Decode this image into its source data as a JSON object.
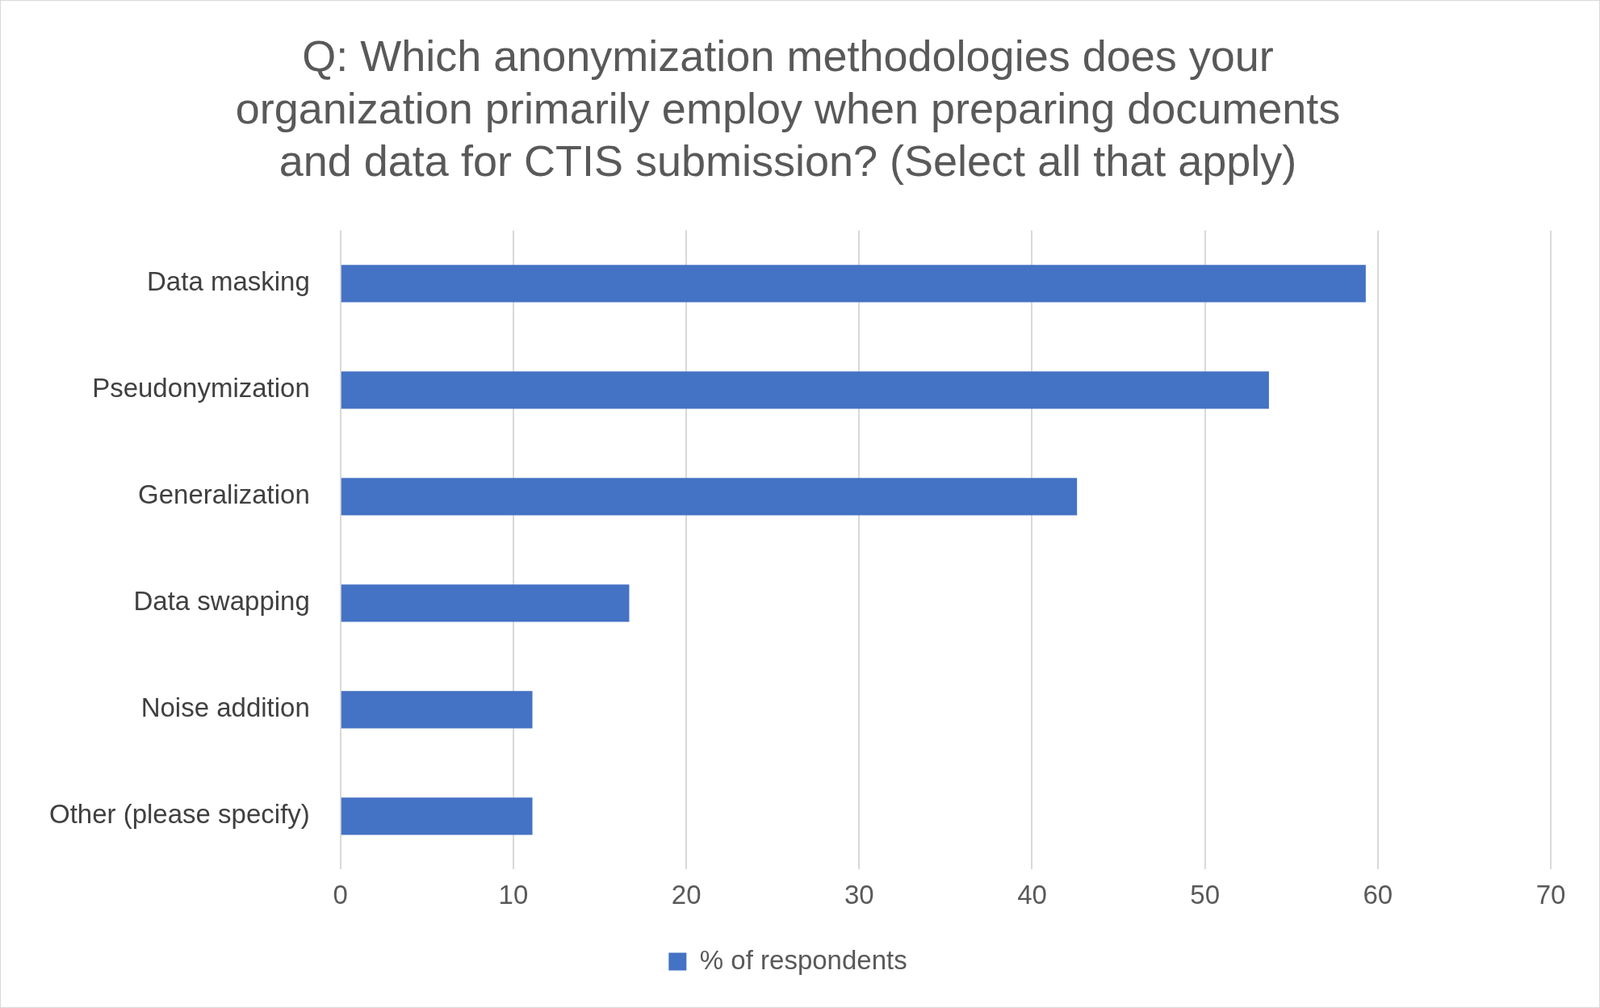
{
  "chart_data": {
    "type": "bar",
    "title": [
      "Q: Which anonymization methodologies does your",
      "organization primarily employ when preparing documents",
      "and data for CTIS submission? (Select all that apply)"
    ],
    "orientation": "horizontal",
    "categories": [
      "Data masking",
      "Pseudonymization",
      "Generalization",
      "Data swapping",
      "Noise addition",
      "Other (please specify)"
    ],
    "series": [
      {
        "name": "% of respondents",
        "color": "#4472c4",
        "values": [
          59.3,
          53.7,
          42.6,
          16.7,
          11.1,
          11.1
        ]
      }
    ],
    "xlim": [
      0,
      70
    ],
    "xticks": [
      0,
      10,
      20,
      30,
      40,
      50,
      60,
      70
    ],
    "grid": true,
    "legend": "bottom"
  }
}
